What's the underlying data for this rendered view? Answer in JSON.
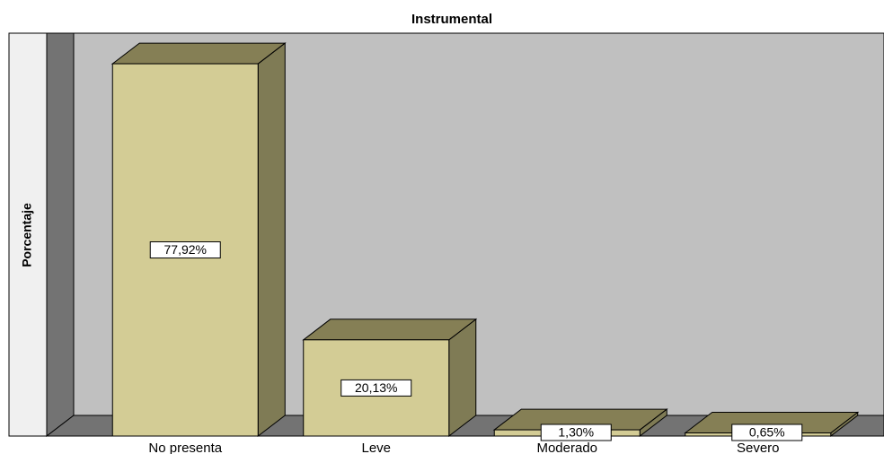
{
  "chart_data": {
    "type": "bar3d",
    "title": "Instrumental",
    "y_label": "Porcentaje",
    "categories": [
      "No presenta",
      "Leve",
      "Moderado",
      "Severo"
    ],
    "values": [
      77.92,
      20.13,
      1.3,
      0.65
    ],
    "value_labels": [
      "77,92%",
      "20,13%",
      "1,30%",
      "0,65%"
    ],
    "color": "#d3cc95",
    "ylim": [
      0,
      80
    ]
  }
}
